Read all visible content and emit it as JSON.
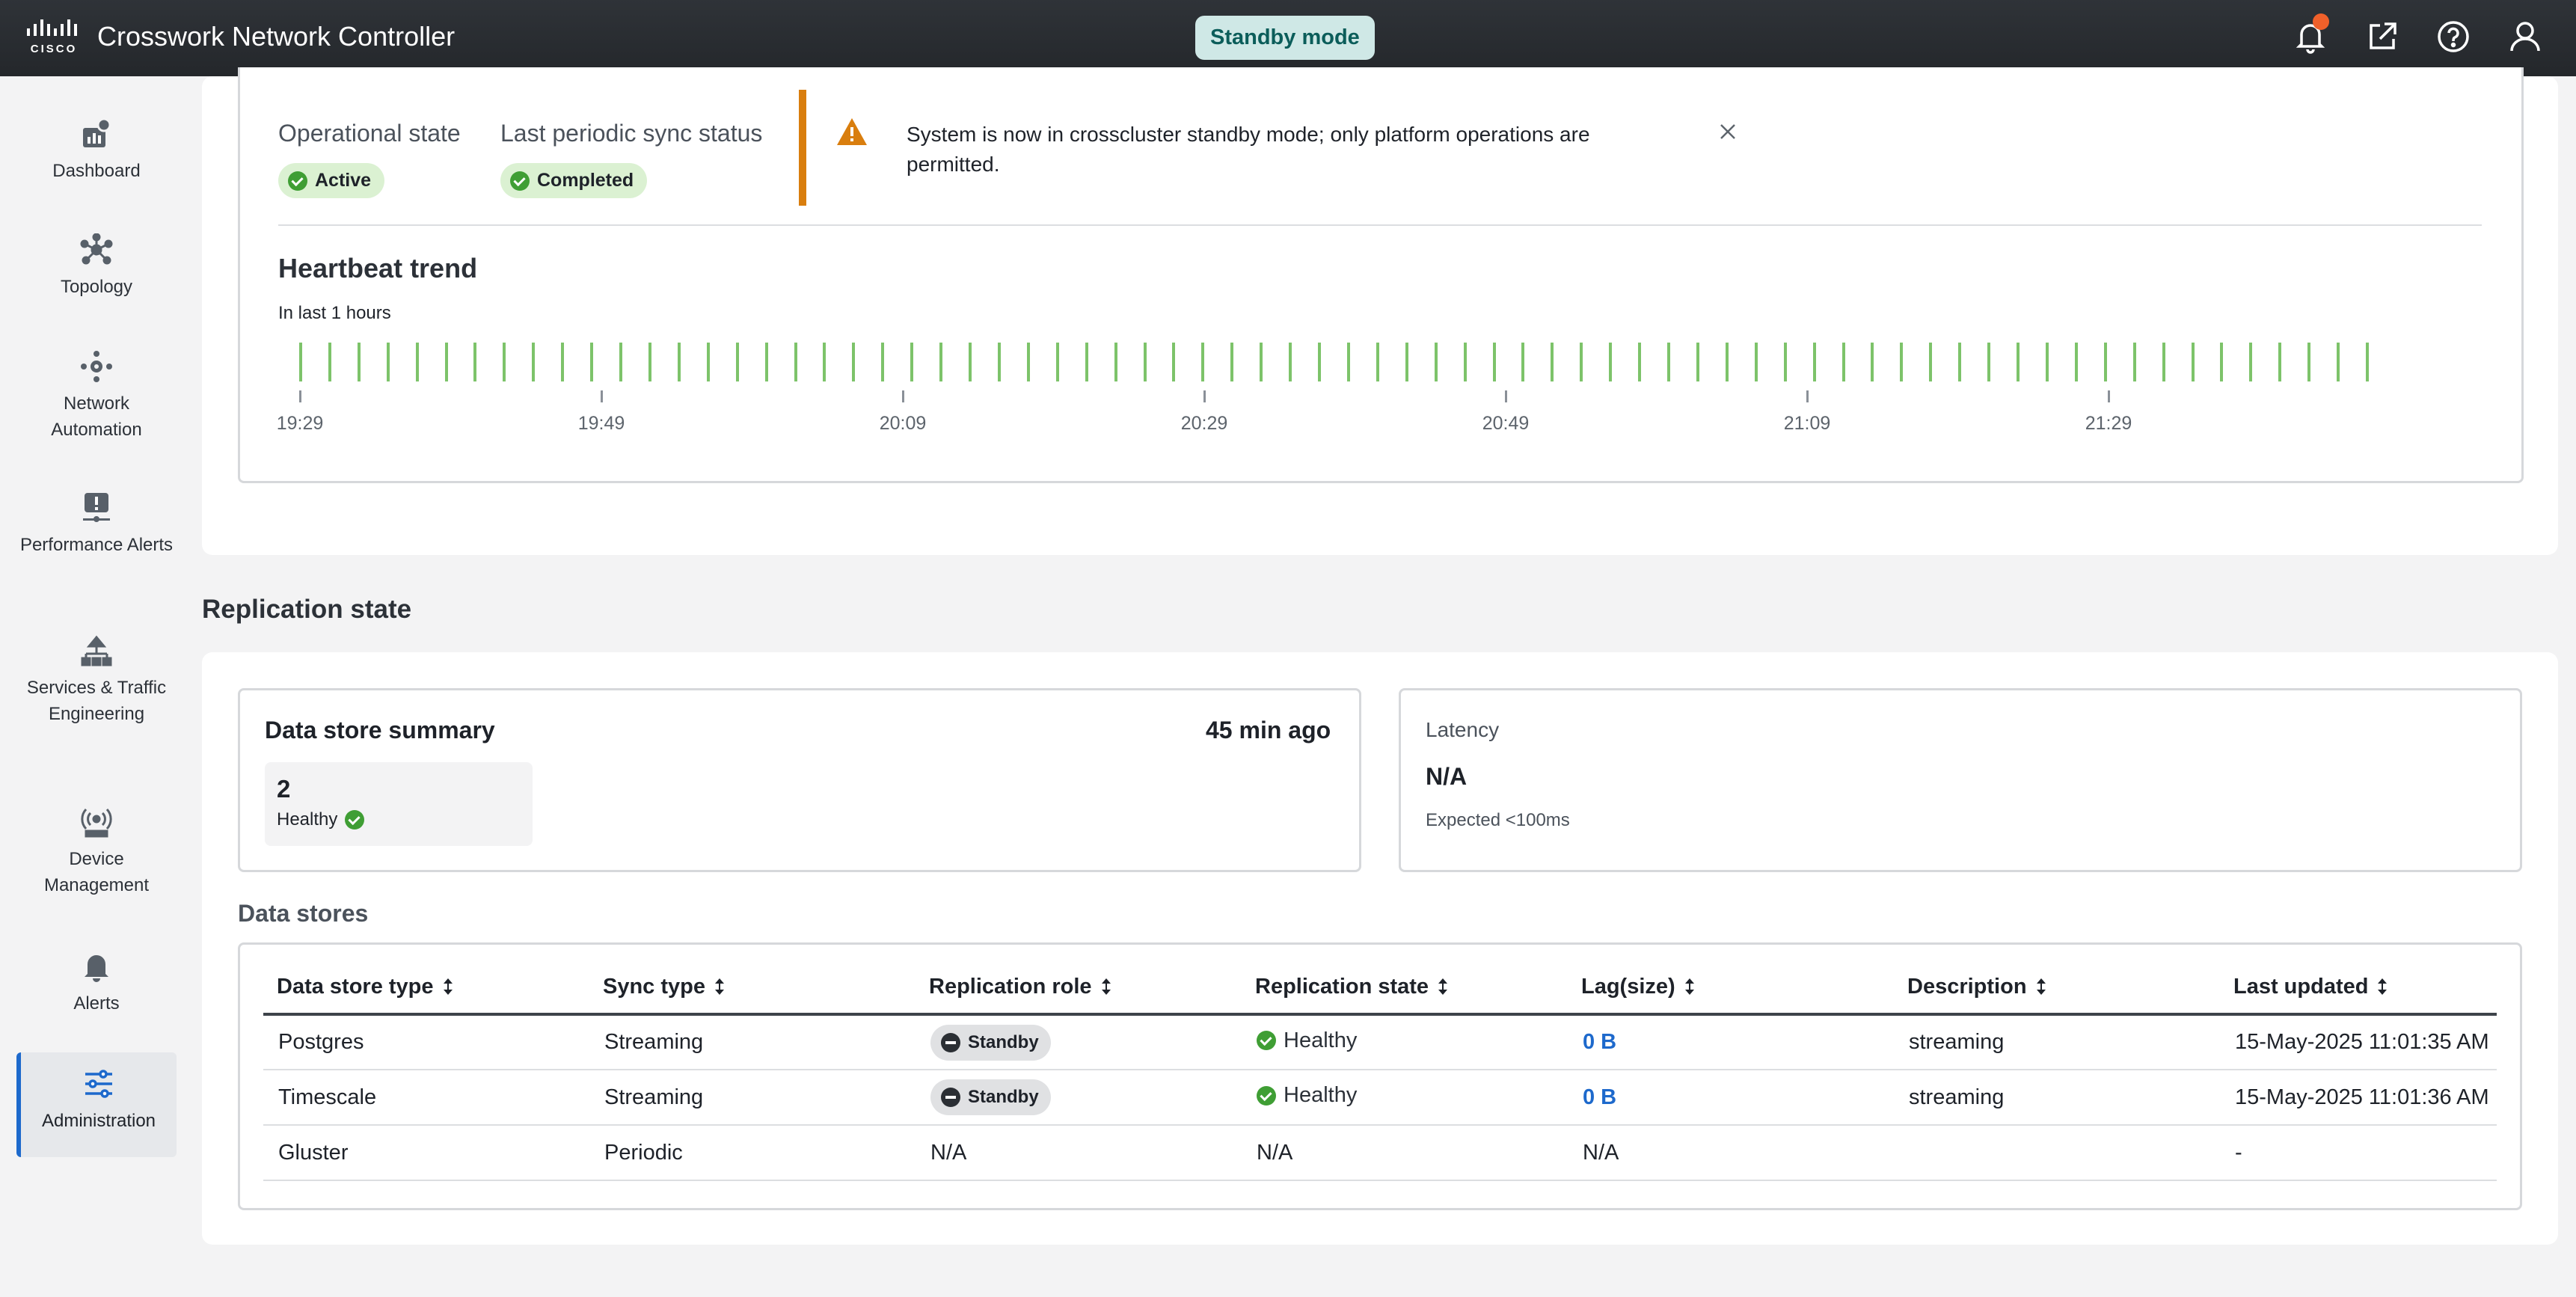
{
  "header": {
    "title": "Crosswork Network Controller",
    "mode_badge": "Standby mode"
  },
  "sidebar": {
    "items": [
      {
        "label": "Dashboard",
        "icon": "dashboard-icon"
      },
      {
        "label": "Topology",
        "icon": "topology-icon"
      },
      {
        "label": "Network Automation",
        "icon": "network-automation-icon"
      },
      {
        "label": "Performance Alerts",
        "icon": "performance-alerts-icon"
      },
      {
        "label": "Services & Traffic Engineering",
        "icon": "services-icon"
      },
      {
        "label": "Device Management",
        "icon": "device-management-icon"
      },
      {
        "label": "Alerts",
        "icon": "bell-icon"
      },
      {
        "label": "Administration",
        "icon": "sliders-icon",
        "active": true
      }
    ]
  },
  "cluster_card": {
    "operational_state_label": "Operational state",
    "operational_state_value": "Active",
    "sync_status_label": "Last periodic sync status",
    "sync_status_value": "Completed",
    "alert_message": "System is now in crosscluster standby mode; only platform operations are permitted.",
    "heartbeat_title": "Heartbeat trend",
    "heartbeat_subtitle": "In last 1 hours",
    "heartbeat_count": 72,
    "time_labels": [
      "19:29",
      "19:49",
      "20:09",
      "20:29",
      "20:49",
      "21:09",
      "21:29"
    ]
  },
  "replication": {
    "title": "Replication state",
    "summary": {
      "title": "Data store summary",
      "updated": "45 min ago",
      "healthy_count": "2",
      "healthy_label": "Healthy"
    },
    "latency": {
      "label": "Latency",
      "value": "N/A",
      "expected": "Expected <100ms"
    },
    "datastores_title": "Data stores",
    "columns": [
      "Data store type",
      "Sync type",
      "Replication role",
      "Replication state",
      "Lag(size)",
      "Description",
      "Last updated"
    ],
    "rows": [
      {
        "type": "Postgres",
        "sync": "Streaming",
        "role": "Standby",
        "state": "Healthy",
        "lag": "0 B",
        "description": "streaming",
        "updated": "15-May-2025 11:01:35 AM"
      },
      {
        "type": "Timescale",
        "sync": "Streaming",
        "role": "Standby",
        "state": "Healthy",
        "lag": "0 B",
        "description": "streaming",
        "updated": "15-May-2025 11:01:36 AM"
      },
      {
        "type": "Gluster",
        "sync": "Periodic",
        "role": "N/A",
        "state": "N/A",
        "lag": "N/A",
        "description": "",
        "updated": "-"
      }
    ]
  },
  "colors": {
    "accent": "#1d69cc",
    "healthy": "#3f9e34",
    "warning": "#d97e0e",
    "heartbeat": "#7dc36a"
  }
}
